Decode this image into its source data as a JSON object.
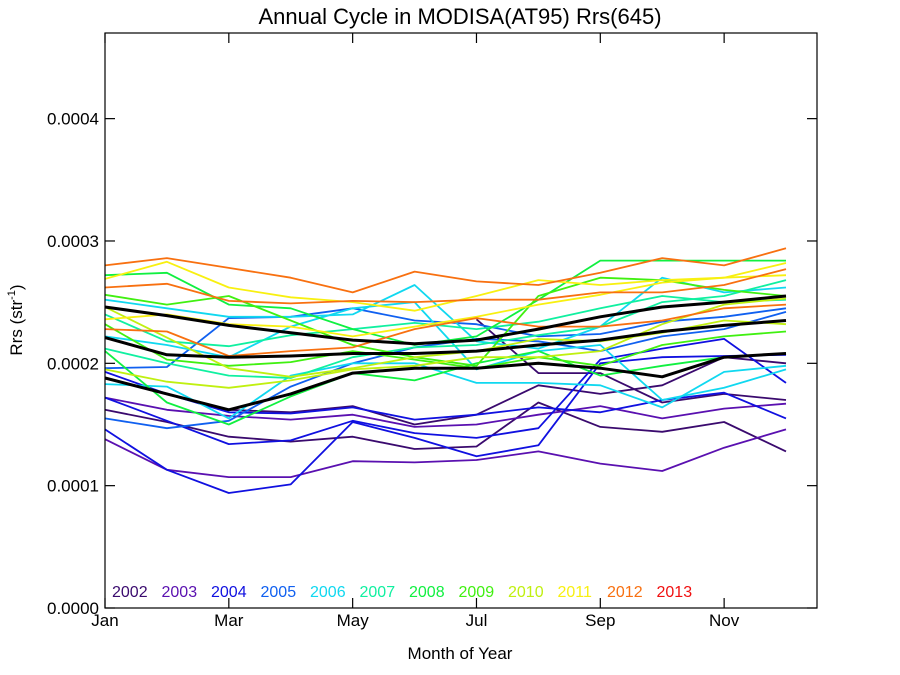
{
  "chart_data": {
    "type": "line",
    "title": "Annual Cycle in MODISA(AT95) Rrs(645)",
    "xlabel": "Month of Year",
    "ylabel_main": "Rrs (str",
    "ylabel_sup": "-1",
    "ylabel_end": ")",
    "xlim": [
      1,
      12.5
    ],
    "ylim": [
      0,
      0.00047
    ],
    "xticks": [
      {
        "value": 1,
        "label": "Jan"
      },
      {
        "value": 3,
        "label": "Mar"
      },
      {
        "value": 5,
        "label": "May"
      },
      {
        "value": 7,
        "label": "Jul"
      },
      {
        "value": 9,
        "label": "Sep"
      },
      {
        "value": 11,
        "label": "Nov"
      }
    ],
    "yticks": [
      {
        "value": 0,
        "label": "0.0000"
      },
      {
        "value": 0.0001,
        "label": "0.0001"
      },
      {
        "value": 0.0002,
        "label": "0.0002"
      },
      {
        "value": 0.0003,
        "label": "0.0003"
      },
      {
        "value": 0.0004,
        "label": "0.0004"
      }
    ],
    "x": [
      1,
      2,
      3,
      4,
      5,
      6,
      7,
      8,
      9,
      10,
      11,
      12
    ],
    "legend_position": "bottom-left",
    "legend": [
      {
        "label": "2002",
        "color": "#3a0a6e"
      },
      {
        "label": "2003",
        "color": "#5a10b0"
      },
      {
        "label": "2004",
        "color": "#1010e0"
      },
      {
        "label": "2005",
        "color": "#1060f0"
      },
      {
        "label": "2006",
        "color": "#10d8f0"
      },
      {
        "label": "2007",
        "color": "#10f0a0"
      },
      {
        "label": "2008",
        "color": "#10f040"
      },
      {
        "label": "2009",
        "color": "#40f010"
      },
      {
        "label": "2010",
        "color": "#c0f010"
      },
      {
        "label": "2011",
        "color": "#f8f010"
      },
      {
        "label": "2012",
        "color": "#f87010"
      },
      {
        "label": "2013",
        "color": "#f01010"
      }
    ],
    "series": [
      {
        "color": "#3a0a6e",
        "values": [
          0.000162,
          0.000152,
          0.00014,
          0.000136,
          0.00014,
          0.00013,
          0.000132,
          0.000168,
          0.000148,
          0.000144,
          0.000152,
          0.000128
        ]
      },
      {
        "color": "#3a0a6e",
        "values": [
          0.000188,
          0.000175,
          0.000162,
          0.00016,
          0.000165,
          0.00015,
          0.000158,
          0.000182,
          0.000175,
          0.000182,
          0.000205,
          0.0002
        ]
      },
      {
        "color": "#3a0a6e",
        "values": [
          null,
          null,
          null,
          null,
          null,
          null,
          0.000236,
          0.000192,
          0.000192,
          0.000168,
          0.000175,
          0.00017
        ]
      },
      {
        "color": "#5a10b0",
        "values": [
          0.000138,
          0.000113,
          0.000107,
          0.000107,
          0.00012,
          0.000119,
          0.000121,
          0.000128,
          0.000118,
          0.000112,
          0.000131,
          0.000146
        ]
      },
      {
        "color": "#5a10b0",
        "values": [
          0.000172,
          0.000162,
          0.000157,
          0.000154,
          0.000158,
          0.000148,
          0.00015,
          0.000158,
          0.000165,
          0.000155,
          0.000163,
          0.000167
        ]
      },
      {
        "color": "#1010e0",
        "values": [
          0.000146,
          0.000113,
          9.4e-05,
          0.000101,
          0.000152,
          0.000139,
          0.000124,
          0.000133,
          0.0002,
          0.000205,
          0.000206,
          0.000207
        ]
      },
      {
        "color": "#1010e0",
        "values": [
          0.000172,
          0.000153,
          0.000134,
          0.000137,
          0.000153,
          0.000143,
          0.000139,
          0.000147,
          0.000203,
          0.000212,
          0.00022,
          0.000184
        ]
      },
      {
        "color": "#1010e0",
        "values": [
          0.000193,
          0.000175,
          0.00016,
          0.000159,
          0.000164,
          0.000154,
          0.000158,
          0.000164,
          0.00016,
          0.00017,
          0.000176,
          0.000155
        ]
      },
      {
        "color": "#1060f0",
        "values": [
          0.000155,
          0.000147,
          0.000153,
          0.000181,
          0.0002,
          0.000213,
          0.00022,
          0.000218,
          0.00021,
          0.000222,
          0.000228,
          0.000242
        ]
      },
      {
        "color": "#1060f0",
        "values": [
          0.000196,
          0.000197,
          0.000237,
          0.000238,
          0.000245,
          0.000235,
          0.000232,
          0.000222,
          0.000224,
          0.000234,
          0.000238,
          0.000245
        ]
      },
      {
        "color": "#10d8f0",
        "values": [
          0.000183,
          0.000181,
          0.000155,
          0.00019,
          0.0002,
          0.0002,
          0.000184,
          0.000184,
          0.000182,
          0.000164,
          0.000193,
          0.000198
        ]
      },
      {
        "color": "#10d8f0",
        "values": [
          0.000222,
          0.000215,
          0.000205,
          0.00023,
          0.000245,
          0.00025,
          0.000195,
          0.00021,
          0.000215,
          0.00017,
          0.00018,
          0.000195
        ]
      },
      {
        "color": "#10d8f0",
        "values": [
          0.000252,
          0.000245,
          0.000238,
          0.000238,
          0.00024,
          0.000264,
          0.000218,
          0.000212,
          0.00023,
          0.00027,
          0.000258,
          0.000262
        ]
      },
      {
        "color": "#10f0a0",
        "values": [
          0.00024,
          0.000218,
          0.000214,
          0.000223,
          0.000228,
          0.000233,
          0.000228,
          0.000234,
          0.000245,
          0.000255,
          0.00025,
          0.000252
        ]
      },
      {
        "color": "#10f0a0",
        "values": [
          0.000212,
          0.0002,
          0.00019,
          0.000188,
          0.000205,
          0.000213,
          0.000215,
          0.000223,
          0.00023,
          0.00025,
          0.000255,
          0.000268
        ]
      },
      {
        "color": "#10f040",
        "values": [
          0.000272,
          0.000274,
          0.000248,
          0.000245,
          0.000228,
          0.000215,
          0.000222,
          0.000252,
          0.000284,
          0.000284,
          0.000284,
          0.000284
        ]
      },
      {
        "color": "#10f040",
        "values": [
          0.00021,
          0.000168,
          0.00015,
          0.000173,
          0.000192,
          0.000186,
          0.0002,
          0.00021,
          0.00019,
          0.000198,
          0.000205,
          0.000208
        ]
      },
      {
        "color": "#40f010",
        "values": [
          0.000232,
          0.000203,
          0.000198,
          0.000201,
          0.00021,
          0.000203,
          0.000196,
          0.000205,
          0.000198,
          0.000215,
          0.000222,
          0.000226
        ]
      },
      {
        "color": "#40f010",
        "values": [
          0.000256,
          0.000248,
          0.000255,
          0.000235,
          0.000215,
          0.000205,
          0.000198,
          0.000255,
          0.00027,
          0.000268,
          0.00026,
          0.000255
        ]
      },
      {
        "color": "#c0f010",
        "values": [
          0.000246,
          0.000221,
          0.000196,
          0.000189,
          0.000196,
          0.000205,
          0.00021,
          0.00022,
          0.000218,
          0.000225,
          0.000235,
          0.000232
        ]
      },
      {
        "color": "#c0f010",
        "values": [
          0.000195,
          0.000185,
          0.00018,
          0.000186,
          0.000195,
          0.000198,
          0.000205,
          0.000205,
          0.00021,
          0.000232,
          0.000248,
          0.000253
        ]
      },
      {
        "color": "#f8f010",
        "values": [
          0.000269,
          0.000283,
          0.000262,
          0.000254,
          0.00025,
          0.000243,
          0.000255,
          0.000268,
          0.000264,
          0.000268,
          0.00027,
          0.000282
        ]
      },
      {
        "color": "#f8f010",
        "values": [
          0.000236,
          0.00024,
          0.000232,
          0.00023,
          0.000222,
          0.00023,
          0.000238,
          0.000248,
          0.000256,
          0.000266,
          0.00027,
          0.000272
        ]
      },
      {
        "color": "#f87010",
        "values": [
          0.00028,
          0.000286,
          0.000278,
          0.00027,
          0.000258,
          0.000275,
          0.000267,
          0.000264,
          0.000274,
          0.000286,
          0.00028,
          0.000294
        ]
      },
      {
        "color": "#f87010",
        "values": [
          0.000262,
          0.000265,
          0.000251,
          0.000249,
          0.000251,
          0.00025,
          0.000252,
          0.000252,
          0.000258,
          0.000258,
          0.000264,
          0.000277
        ]
      },
      {
        "color": "#f87010",
        "values": [
          0.000228,
          0.000226,
          0.000206,
          0.00021,
          0.000213,
          0.000228,
          0.000237,
          0.00023,
          0.00023,
          0.000235,
          0.000245,
          0.000248
        ]
      },
      {
        "color": "#000000",
        "bold": true,
        "values": [
          0.000246,
          0.000239,
          0.000231,
          0.000225,
          0.000219,
          0.000216,
          0.000219,
          0.000228,
          0.000238,
          0.000246,
          0.00025,
          0.000255
        ]
      },
      {
        "color": "#000000",
        "bold": true,
        "values": [
          0.000221,
          0.000207,
          0.000205,
          0.000206,
          0.000208,
          0.000208,
          0.00021,
          0.000215,
          0.000219,
          0.000226,
          0.000231,
          0.000235
        ]
      },
      {
        "color": "#000000",
        "bold": true,
        "values": [
          0.000188,
          0.000175,
          0.000162,
          0.000175,
          0.000192,
          0.000196,
          0.000196,
          0.0002,
          0.000196,
          0.000189,
          0.000205,
          0.000208
        ]
      }
    ]
  }
}
